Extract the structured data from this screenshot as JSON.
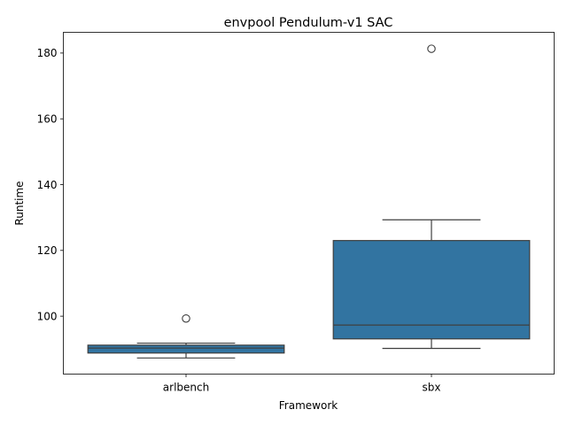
{
  "chart_data": {
    "type": "box",
    "title": "envpool Pendulum-v1 SAC",
    "xlabel": "Framework",
    "ylabel": "Runtime",
    "categories": [
      "arlbench",
      "sbx"
    ],
    "ylim": [
      82.4,
      186.3
    ],
    "yticks": [
      100,
      120,
      140,
      160,
      180
    ],
    "box_color": "#3274a1",
    "line_color": "#3f3f3f",
    "boxes": [
      {
        "category": "arlbench",
        "whisker_low": 87.3,
        "q1": 88.8,
        "median": 90.3,
        "q3": 91.2,
        "whisker_high": 91.8,
        "outliers": [
          99.3
        ]
      },
      {
        "category": "sbx",
        "whisker_low": 90.2,
        "q1": 93.1,
        "median": 97.3,
        "q3": 123.0,
        "whisker_high": 129.3,
        "outliers": [
          181.3
        ]
      }
    ]
  }
}
